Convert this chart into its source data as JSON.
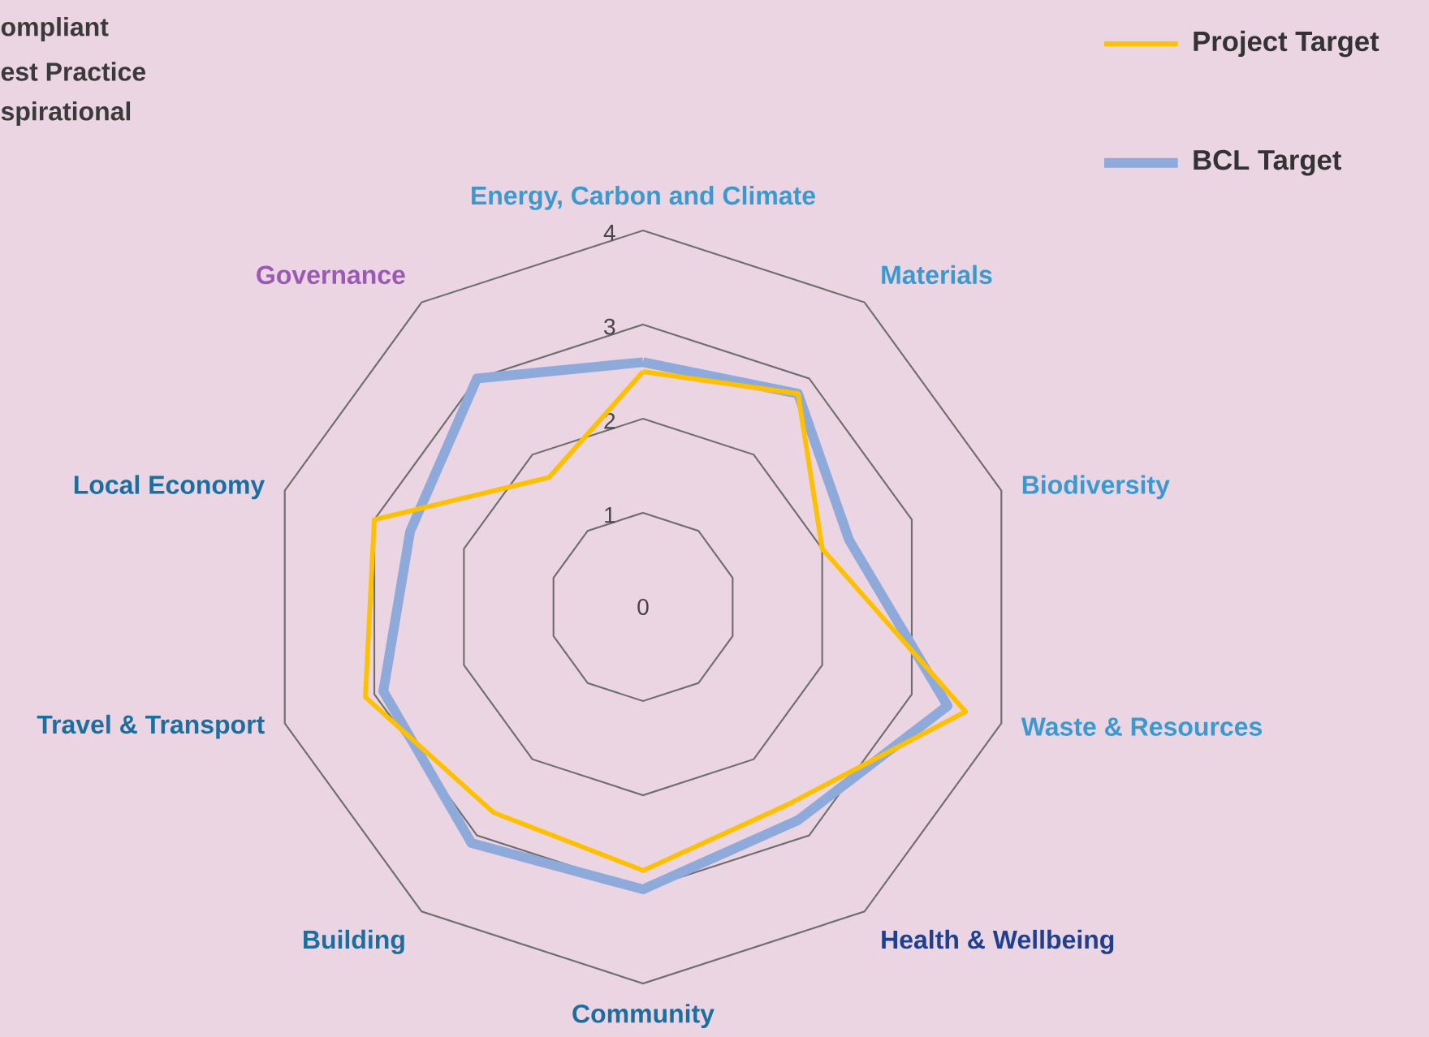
{
  "chart_data": {
    "type": "radar",
    "categories": [
      "Energy, Carbon and Climate",
      "Materials",
      "Biodiversity",
      "Waste & Resources",
      "Health & Wellbeing",
      "Community",
      "Building",
      "Travel & Transport",
      "Local Economy",
      "Governance"
    ],
    "series": [
      {
        "name": "Project Target",
        "color": "#ffc000",
        "values": [
          2.5,
          2.8,
          2.0,
          3.6,
          2.6,
          2.8,
          2.7,
          3.1,
          3.0,
          1.7
        ]
      },
      {
        "name": "BCL Target",
        "color": "#8eaadb",
        "values": [
          2.6,
          2.8,
          2.3,
          3.4,
          2.8,
          3.0,
          3.1,
          2.9,
          2.6,
          3.0
        ]
      }
    ],
    "ylim": [
      0,
      4
    ],
    "yticks": [
      0,
      1,
      2,
      3,
      4
    ],
    "grid": true,
    "legend": "top right",
    "annotations": [
      "ompliant",
      "est Practice",
      "spirational"
    ]
  }
}
